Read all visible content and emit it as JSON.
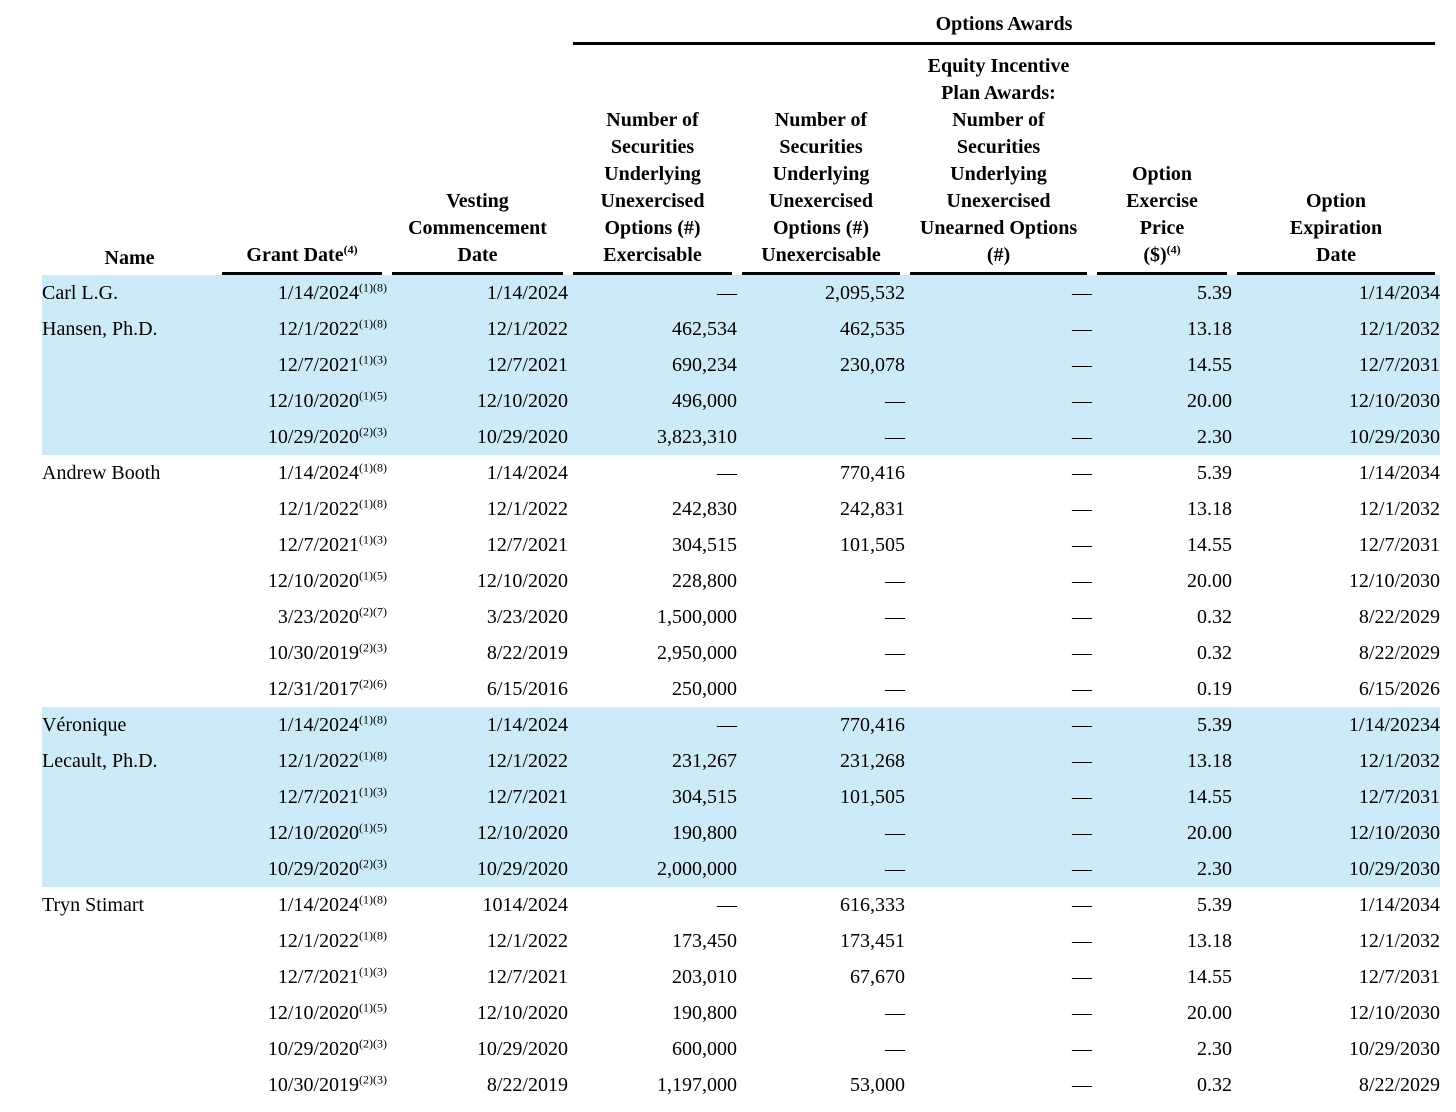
{
  "table": {
    "group_header": "Options Awards",
    "highlight_color": "#cdeaf8",
    "columns": [
      {
        "id": "name",
        "label": "Name"
      },
      {
        "id": "grant-date",
        "label": "Grant Date",
        "sup": "(4)"
      },
      {
        "id": "vesting-commencement-date",
        "label": "Vesting\nCommencement\nDate"
      },
      {
        "id": "exercisable",
        "label": "Number of\nSecurities\nUnderlying\nUnexercised\nOptions (#)\nExercisable"
      },
      {
        "id": "unexercisable",
        "label": "Number of\nSecurities\nUnderlying\nUnexercised\nOptions (#)\nUnexercisable"
      },
      {
        "id": "unearned-options",
        "label": "Equity Incentive\nPlan Awards:\nNumber of\nSecurities\nUnderlying\nUnexercised\nUnearned Options\n(#)"
      },
      {
        "id": "exercise-price",
        "label": "Option\nExercise\nPrice\n($)",
        "sup": "(4)"
      },
      {
        "id": "expiration-date",
        "label": "Option\nExpiration\nDate"
      }
    ],
    "groups": [
      {
        "name": "Carl L.G.\nHansen, Ph.D.",
        "highlighted": true,
        "rows": [
          {
            "grant_date": "1/14/2024",
            "grant_sup": "(1)(8)",
            "vesting": "1/14/2024",
            "exercisable": "—",
            "unexercisable": "2,095,532",
            "unearned": "—",
            "price": "5.39",
            "expiration": "1/14/2034"
          },
          {
            "grant_date": "12/1/2022",
            "grant_sup": "(1)(8)",
            "vesting": "12/1/2022",
            "exercisable": "462,534",
            "unexercisable": "462,535",
            "unearned": "—",
            "price": "13.18",
            "expiration": "12/1/2032"
          },
          {
            "grant_date": "12/7/2021",
            "grant_sup": "(1)(3)",
            "vesting": "12/7/2021",
            "exercisable": "690,234",
            "unexercisable": "230,078",
            "unearned": "—",
            "price": "14.55",
            "expiration": "12/7/2031"
          },
          {
            "grant_date": "12/10/2020",
            "grant_sup": "(1)(5)",
            "vesting": "12/10/2020",
            "exercisable": "496,000",
            "unexercisable": "—",
            "unearned": "—",
            "price": "20.00",
            "expiration": "12/10/2030"
          },
          {
            "grant_date": "10/29/2020",
            "grant_sup": "(2)(3)",
            "vesting": "10/29/2020",
            "exercisable": "3,823,310",
            "unexercisable": "—",
            "unearned": "—",
            "price": "2.30",
            "expiration": "10/29/2030"
          }
        ]
      },
      {
        "name": "Andrew Booth",
        "highlighted": false,
        "rows": [
          {
            "grant_date": "1/14/2024",
            "grant_sup": "(1)(8)",
            "vesting": "1/14/2024",
            "exercisable": "—",
            "unexercisable": "770,416",
            "unearned": "—",
            "price": "5.39",
            "expiration": "1/14/2034"
          },
          {
            "grant_date": "12/1/2022",
            "grant_sup": "(1)(8)",
            "vesting": "12/1/2022",
            "exercisable": "242,830",
            "unexercisable": "242,831",
            "unearned": "—",
            "price": "13.18",
            "expiration": "12/1/2032"
          },
          {
            "grant_date": "12/7/2021",
            "grant_sup": "(1)(3)",
            "vesting": "12/7/2021",
            "exercisable": "304,515",
            "unexercisable": "101,505",
            "unearned": "—",
            "price": "14.55",
            "expiration": "12/7/2031"
          },
          {
            "grant_date": "12/10/2020",
            "grant_sup": "(1)(5)",
            "vesting": "12/10/2020",
            "exercisable": "228,800",
            "unexercisable": "—",
            "unearned": "—",
            "price": "20.00",
            "expiration": "12/10/2030"
          },
          {
            "grant_date": "3/23/2020",
            "grant_sup": "(2)(7)",
            "vesting": "3/23/2020",
            "exercisable": "1,500,000",
            "unexercisable": "—",
            "unearned": "—",
            "price": "0.32",
            "expiration": "8/22/2029"
          },
          {
            "grant_date": "10/30/2019",
            "grant_sup": "(2)(3)",
            "vesting": "8/22/2019",
            "exercisable": "2,950,000",
            "unexercisable": "—",
            "unearned": "—",
            "price": "0.32",
            "expiration": "8/22/2029"
          },
          {
            "grant_date": "12/31/2017",
            "grant_sup": "(2)(6)",
            "vesting": "6/15/2016",
            "exercisable": "250,000",
            "unexercisable": "—",
            "unearned": "—",
            "price": "0.19",
            "expiration": "6/15/2026"
          }
        ]
      },
      {
        "name": "Véronique\nLecault, Ph.D.",
        "highlighted": true,
        "rows": [
          {
            "grant_date": "1/14/2024",
            "grant_sup": "(1)(8)",
            "vesting": "1/14/2024",
            "exercisable": "—",
            "unexercisable": "770,416",
            "unearned": "—",
            "price": "5.39",
            "expiration": "1/14/20234"
          },
          {
            "grant_date": "12/1/2022",
            "grant_sup": "(1)(8)",
            "vesting": "12/1/2022",
            "exercisable": "231,267",
            "unexercisable": "231,268",
            "unearned": "—",
            "price": "13.18",
            "expiration": "12/1/2032"
          },
          {
            "grant_date": "12/7/2021",
            "grant_sup": "(1)(3)",
            "vesting": "12/7/2021",
            "exercisable": "304,515",
            "unexercisable": "101,505",
            "unearned": "—",
            "price": "14.55",
            "expiration": "12/7/2031"
          },
          {
            "grant_date": "12/10/2020",
            "grant_sup": "(1)(5)",
            "vesting": "12/10/2020",
            "exercisable": "190,800",
            "unexercisable": "—",
            "unearned": "—",
            "price": "20.00",
            "expiration": "12/10/2030"
          },
          {
            "grant_date": "10/29/2020",
            "grant_sup": "(2)(3)",
            "vesting": "10/29/2020",
            "exercisable": "2,000,000",
            "unexercisable": "—",
            "unearned": "—",
            "price": "2.30",
            "expiration": "10/29/2030"
          }
        ]
      },
      {
        "name": "Tryn Stimart",
        "highlighted": false,
        "rows": [
          {
            "grant_date": "1/14/2024",
            "grant_sup": "(1)(8)",
            "vesting": "1014/2024",
            "exercisable": "—",
            "unexercisable": "616,333",
            "unearned": "—",
            "price": "5.39",
            "expiration": "1/14/2034"
          },
          {
            "grant_date": "12/1/2022",
            "grant_sup": "(1)(8)",
            "vesting": "12/1/2022",
            "exercisable": "173,450",
            "unexercisable": "173,451",
            "unearned": "—",
            "price": "13.18",
            "expiration": "12/1/2032"
          },
          {
            "grant_date": "12/7/2021",
            "grant_sup": "(1)(3)",
            "vesting": "12/7/2021",
            "exercisable": "203,010",
            "unexercisable": "67,670",
            "unearned": "—",
            "price": "14.55",
            "expiration": "12/7/2031"
          },
          {
            "grant_date": "12/10/2020",
            "grant_sup": "(1)(5)",
            "vesting": "12/10/2020",
            "exercisable": "190,800",
            "unexercisable": "—",
            "unearned": "—",
            "price": "20.00",
            "expiration": "12/10/2030"
          },
          {
            "grant_date": "10/29/2020",
            "grant_sup": "(2)(3)",
            "vesting": "10/29/2020",
            "exercisable": "600,000",
            "unexercisable": "—",
            "unearned": "—",
            "price": "2.30",
            "expiration": "10/29/2030"
          },
          {
            "grant_date": "10/30/2019",
            "grant_sup": "(2)(3)",
            "vesting": "8/22/2019",
            "exercisable": "1,197,000",
            "unexercisable": "53,000",
            "unearned": "—",
            "price": "0.32",
            "expiration": "8/22/2029"
          }
        ]
      }
    ]
  }
}
